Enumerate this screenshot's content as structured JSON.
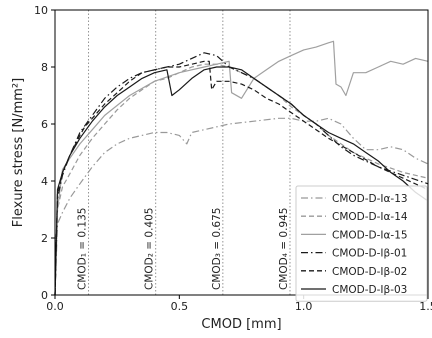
{
  "colors": {
    "medium_gray": "#999999",
    "light_gray": "#a0a0a0",
    "dark": "#1a1a1a",
    "frame": "#000000",
    "ref_line": "#888888"
  },
  "chart_data": {
    "type": "line",
    "title": "",
    "xlabel": "CMOD [mm]",
    "ylabel": "Flexure stress [N/mm²]",
    "xlim": [
      0,
      1.5
    ],
    "ylim": [
      0,
      10
    ],
    "xticks": [
      0.0,
      0.5,
      1.0,
      1.5
    ],
    "xtick_labels": [
      "0.0",
      "0.5",
      "1.0",
      "1.5"
    ],
    "yticks": [
      0,
      2,
      4,
      6,
      8,
      10
    ],
    "ytick_labels": [
      "0",
      "2",
      "4",
      "6",
      "8",
      "10"
    ],
    "grid": false,
    "legend_position": "bottom-right",
    "reference_lines": [
      {
        "x": 0.135,
        "label": "CMOD₁ = 0.135"
      },
      {
        "x": 0.405,
        "label": "CMOD₂ = 0.405"
      },
      {
        "x": 0.675,
        "label": "CMOD₃ = 0.675"
      },
      {
        "x": 0.945,
        "label": "CMOD₄ = 0.945"
      }
    ],
    "series": [
      {
        "name": "CMOD-D-Iα-13",
        "color": "medium_gray",
        "dash": "dashdot",
        "x": [
          0,
          0.01,
          0.03,
          0.06,
          0.1,
          0.15,
          0.2,
          0.25,
          0.3,
          0.35,
          0.4,
          0.45,
          0.5,
          0.53,
          0.55,
          0.6,
          0.7,
          0.8,
          0.9,
          0.95,
          1.0,
          1.05,
          1.1,
          1.15,
          1.2,
          1.25,
          1.3,
          1.35,
          1.4,
          1.45,
          1.5
        ],
        "y": [
          0,
          2.5,
          2.9,
          3.4,
          3.9,
          4.5,
          5.0,
          5.3,
          5.5,
          5.6,
          5.7,
          5.7,
          5.6,
          5.3,
          5.7,
          5.8,
          6.0,
          6.1,
          6.2,
          6.2,
          6.1,
          6.1,
          6.2,
          6.0,
          5.5,
          5.1,
          5.1,
          5.2,
          5.1,
          4.8,
          4.6
        ]
      },
      {
        "name": "CMOD-D-Iα-14",
        "color": "medium_gray",
        "dash": "dashed",
        "x": [
          0,
          0.01,
          0.03,
          0.05,
          0.1,
          0.15,
          0.2,
          0.25,
          0.3,
          0.35,
          0.4,
          0.45,
          0.5,
          0.55,
          0.6,
          0.65,
          0.7,
          0.75,
          0.8,
          0.85,
          0.9,
          0.95,
          1.0,
          1.05,
          1.1,
          1.15,
          1.2,
          1.3,
          1.4,
          1.5
        ],
        "y": [
          0,
          3.0,
          3.8,
          4.1,
          4.9,
          5.5,
          6.0,
          6.5,
          6.9,
          7.2,
          7.5,
          7.6,
          7.8,
          8.0,
          8.1,
          8.1,
          8.0,
          7.8,
          7.6,
          7.3,
          7.0,
          6.6,
          6.3,
          6.0,
          5.6,
          5.3,
          5.0,
          4.6,
          4.3,
          4.1
        ]
      },
      {
        "name": "CMOD-D-Iα-15",
        "color": "light_gray",
        "dash": "solid",
        "x": [
          0,
          0.01,
          0.03,
          0.06,
          0.1,
          0.15,
          0.2,
          0.3,
          0.4,
          0.5,
          0.55,
          0.6,
          0.65,
          0.7,
          0.71,
          0.75,
          0.8,
          0.85,
          0.9,
          0.95,
          1.0,
          1.05,
          1.1,
          1.12,
          1.13,
          1.15,
          1.17,
          1.2,
          1.25,
          1.3,
          1.35,
          1.4,
          1.45,
          1.5
        ],
        "y": [
          0,
          3.0,
          4.4,
          4.8,
          5.3,
          5.8,
          6.3,
          7.0,
          7.5,
          7.8,
          7.9,
          8.0,
          8.1,
          8.2,
          7.1,
          6.9,
          7.6,
          7.9,
          8.2,
          8.4,
          8.6,
          8.7,
          8.85,
          8.9,
          7.4,
          7.3,
          7.0,
          7.8,
          7.8,
          8.0,
          8.2,
          8.1,
          8.3,
          8.2
        ]
      },
      {
        "name": "CMOD-D-Iβ-01",
        "color": "dark",
        "dash": "dashdot",
        "x": [
          0,
          0.01,
          0.03,
          0.06,
          0.1,
          0.15,
          0.2,
          0.25,
          0.3,
          0.35,
          0.4,
          0.45,
          0.5,
          0.55,
          0.6,
          0.65,
          0.7,
          0.75,
          0.8,
          0.85,
          0.9,
          0.95,
          1.0,
          1.05,
          1.1,
          1.15,
          1.2,
          1.3,
          1.4,
          1.5
        ],
        "y": [
          0,
          3.4,
          4.2,
          4.9,
          5.7,
          6.3,
          6.9,
          7.3,
          7.6,
          7.8,
          7.9,
          8.0,
          8.1,
          8.3,
          8.5,
          8.4,
          8.0,
          7.8,
          7.6,
          7.3,
          7.0,
          6.7,
          6.3,
          6.0,
          5.6,
          5.2,
          4.9,
          4.5,
          4.2,
          3.9
        ]
      },
      {
        "name": "CMOD-D-Iβ-02",
        "color": "dark",
        "dash": "dashed",
        "x": [
          0,
          0.01,
          0.03,
          0.06,
          0.1,
          0.12,
          0.15,
          0.2,
          0.25,
          0.3,
          0.35,
          0.4,
          0.45,
          0.5,
          0.55,
          0.6,
          0.62,
          0.63,
          0.65,
          0.7,
          0.75,
          0.8,
          0.85,
          0.9,
          0.95,
          1.0,
          1.05,
          1.1,
          1.2,
          1.3,
          1.4,
          1.5
        ],
        "y": [
          0,
          3.6,
          4.3,
          4.9,
          5.6,
          5.9,
          6.2,
          6.7,
          7.1,
          7.5,
          7.8,
          7.9,
          8.0,
          8.0,
          8.1,
          8.2,
          8.2,
          7.2,
          7.5,
          7.5,
          7.4,
          7.2,
          6.9,
          6.7,
          6.4,
          6.1,
          5.8,
          5.5,
          5.0,
          4.5,
          4.1,
          3.7
        ]
      },
      {
        "name": "CMOD-D-Iβ-03",
        "color": "dark",
        "dash": "solid",
        "x": [
          0,
          0.01,
          0.03,
          0.06,
          0.1,
          0.15,
          0.2,
          0.25,
          0.3,
          0.35,
          0.4,
          0.45,
          0.47,
          0.5,
          0.55,
          0.6,
          0.65,
          0.7,
          0.75,
          0.8,
          0.85,
          0.9,
          0.95,
          1.0,
          1.05,
          1.1,
          1.15,
          1.2,
          1.25,
          1.3,
          1.35,
          1.4,
          1.45,
          1.5
        ],
        "y": [
          0,
          3.7,
          4.3,
          4.9,
          5.5,
          6.1,
          6.6,
          7.0,
          7.3,
          7.6,
          7.8,
          7.9,
          7.0,
          7.2,
          7.6,
          7.9,
          8.0,
          8.0,
          7.9,
          7.6,
          7.3,
          7.0,
          6.7,
          6.3,
          6.0,
          5.7,
          5.5,
          5.3,
          5.0,
          4.7,
          4.3,
          4.0,
          3.6,
          3.3
        ]
      }
    ]
  }
}
